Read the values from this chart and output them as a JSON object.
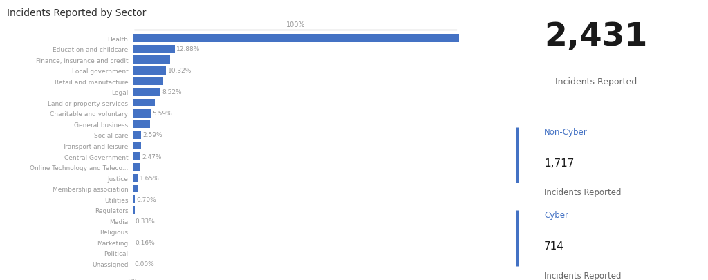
{
  "title": "Incidents Reported by Sector",
  "categories": [
    "Health",
    "Education and childcare",
    "Finance, insurance and credit",
    "Local government",
    "Retail and manufacture",
    "Legal",
    "Land or property services",
    "Charitable and voluntary",
    "General business",
    "Social care",
    "Transport and leisure",
    "Central Government",
    "Online Technology and Teleco...",
    "Justice",
    "Membership association",
    "Utilities",
    "Regulators",
    "Media",
    "Religious",
    "Marketing",
    "Political",
    "Unassigned"
  ],
  "values": [
    100.0,
    12.88,
    11.5,
    10.32,
    9.4,
    8.52,
    6.8,
    5.59,
    5.3,
    2.59,
    2.53,
    2.47,
    2.41,
    1.65,
    1.58,
    0.7,
    0.65,
    0.33,
    0.28,
    0.16,
    0.12,
    0.0
  ],
  "pct_labels": [
    "",
    "12.88%",
    "",
    "10.32%",
    "",
    "8.52%",
    "",
    "5.59%",
    "",
    "2.59%",
    "",
    "2.47%",
    "",
    "1.65%",
    "",
    "0.70%",
    "",
    "0.33%",
    "",
    "0.16%",
    "",
    "0.00%"
  ],
  "bar_color": "#4472C4",
  "ref_line_color": "#C0C0C0",
  "background_color": "#FFFFFF",
  "label_color": "#999999",
  "title_color": "#333333",
  "total_label": "2,431",
  "total_sub": "Incidents Reported",
  "non_cyber_label": "Non-Cyber",
  "non_cyber_value": "1,717",
  "non_cyber_sub": "Incidents Reported",
  "cyber_label": "Cyber",
  "cyber_value": "714",
  "cyber_sub": "Incidents Reported",
  "accent_color": "#4472C4",
  "side_text_color": "#666666"
}
